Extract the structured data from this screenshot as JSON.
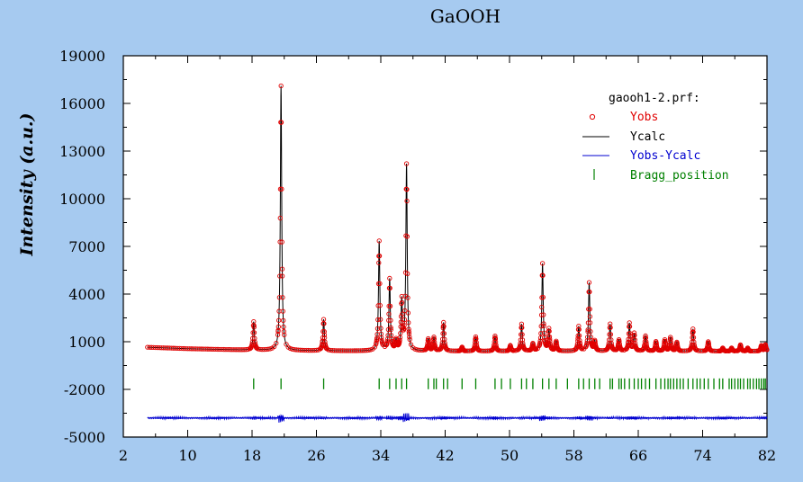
{
  "chart_data": {
    "type": "line",
    "title": "GaOOH",
    "xlabel": "",
    "ylabel": "Intensity (a.u.)",
    "xlim": [
      2,
      82
    ],
    "ylim": [
      -5000,
      19000
    ],
    "x_ticks": [
      2,
      10,
      18,
      26,
      34,
      42,
      50,
      58,
      66,
      74,
      82
    ],
    "y_ticks": [
      -5000,
      -2000,
      1000,
      4000,
      7000,
      10000,
      13000,
      16000,
      19000
    ],
    "legend_title": "gaooh1-2.prf:",
    "legend_position": "top-right",
    "grid": false,
    "background": "#a6caf0",
    "series": [
      {
        "name": "Yobs",
        "style": "open-circle",
        "color": "#e00000"
      },
      {
        "name": "Ycalc",
        "style": "line",
        "color": "#000000"
      },
      {
        "name": "Yobs-Ycalc",
        "style": "line",
        "color": "#0000d0"
      },
      {
        "name": "Bragg_position",
        "style": "tick",
        "color": "#008000"
      }
    ],
    "background_curve": [
      [
        5,
        650
      ],
      [
        10,
        560
      ],
      [
        18,
        470
      ],
      [
        26,
        430
      ],
      [
        34,
        410
      ],
      [
        42,
        400
      ],
      [
        50,
        400
      ],
      [
        58,
        400
      ],
      [
        66,
        400
      ],
      [
        74,
        400
      ],
      [
        82,
        400
      ]
    ],
    "peaks": [
      {
        "x": 18.2,
        "y": 2250
      },
      {
        "x": 21.6,
        "y": 17100
      },
      {
        "x": 26.9,
        "y": 2400
      },
      {
        "x": 33.8,
        "y": 7300
      },
      {
        "x": 35.1,
        "y": 4900
      },
      {
        "x": 35.9,
        "y": 1000
      },
      {
        "x": 36.6,
        "y": 3500
      },
      {
        "x": 37.2,
        "y": 12100
      },
      {
        "x": 39.9,
        "y": 1150
      },
      {
        "x": 40.6,
        "y": 1250
      },
      {
        "x": 41.8,
        "y": 2200
      },
      {
        "x": 44.1,
        "y": 650
      },
      {
        "x": 45.8,
        "y": 1300
      },
      {
        "x": 48.2,
        "y": 1350
      },
      {
        "x": 50.1,
        "y": 750
      },
      {
        "x": 51.5,
        "y": 2100
      },
      {
        "x": 52.9,
        "y": 850
      },
      {
        "x": 54.1,
        "y": 5900
      },
      {
        "x": 54.9,
        "y": 1750
      },
      {
        "x": 55.8,
        "y": 1000
      },
      {
        "x": 58.6,
        "y": 1950
      },
      {
        "x": 59.9,
        "y": 4700
      },
      {
        "x": 60.6,
        "y": 1000
      },
      {
        "x": 62.5,
        "y": 2100
      },
      {
        "x": 63.6,
        "y": 1100
      },
      {
        "x": 64.9,
        "y": 2150
      },
      {
        "x": 65.5,
        "y": 1500
      },
      {
        "x": 66.9,
        "y": 1350
      },
      {
        "x": 68.2,
        "y": 1000
      },
      {
        "x": 69.3,
        "y": 1100
      },
      {
        "x": 70.0,
        "y": 1250
      },
      {
        "x": 70.8,
        "y": 950
      },
      {
        "x": 72.8,
        "y": 1800
      },
      {
        "x": 74.7,
        "y": 1000
      },
      {
        "x": 76.5,
        "y": 600
      },
      {
        "x": 77.6,
        "y": 600
      },
      {
        "x": 78.7,
        "y": 800
      },
      {
        "x": 79.6,
        "y": 600
      },
      {
        "x": 81.3,
        "y": 750
      },
      {
        "x": 81.8,
        "y": 800
      }
    ],
    "difference_baseline": -3800,
    "bragg_tick_y": -1650,
    "bragg_positions": [
      18.2,
      21.6,
      26.9,
      33.8,
      35.1,
      35.9,
      36.6,
      37.2,
      39.9,
      40.6,
      40.9,
      41.8,
      42.3,
      44.1,
      45.8,
      48.2,
      49.0,
      50.1,
      51.5,
      52.1,
      52.9,
      54.1,
      54.9,
      55.8,
      57.2,
      58.6,
      59.2,
      59.9,
      60.6,
      61.2,
      62.5,
      62.8,
      63.6,
      63.9,
      64.3,
      64.9,
      65.5,
      66.0,
      66.4,
      66.9,
      67.4,
      68.2,
      68.8,
      69.3,
      69.7,
      70.0,
      70.4,
      70.8,
      71.2,
      71.6,
      72.2,
      72.8,
      73.3,
      73.7,
      74.2,
      74.7,
      75.4,
      76.1,
      76.5,
      77.3,
      77.6,
      78.0,
      78.4,
      78.7,
      79.1,
      79.6,
      79.9,
      80.3,
      80.7,
      81.0,
      81.3,
      81.6,
      81.8
    ]
  }
}
